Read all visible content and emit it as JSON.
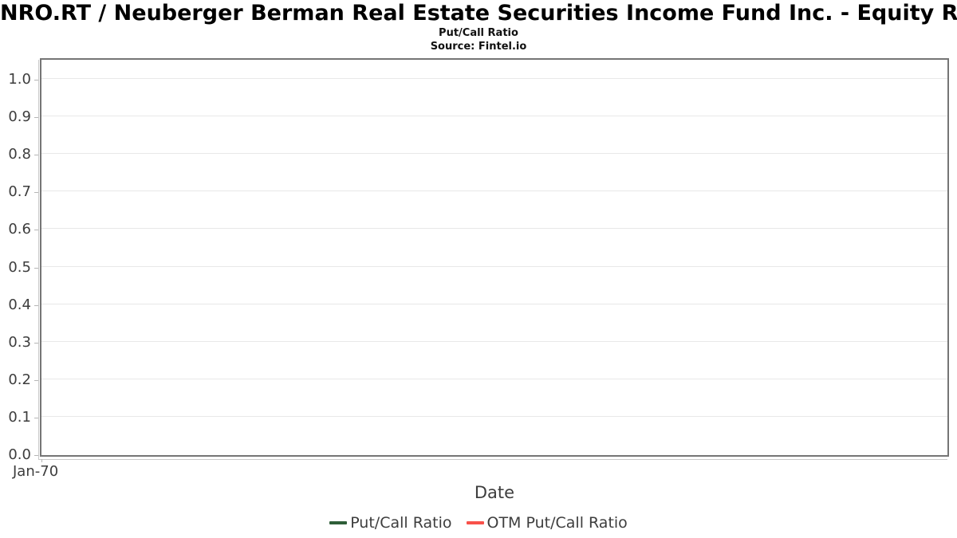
{
  "header": {
    "title": "NRO.RT / Neuberger Berman Real Estate Securities Income Fund Inc. - Equity Right",
    "subtitle": "Put/Call Ratio",
    "source": "Source: Fintel.io"
  },
  "colors": {
    "put_call_series": "#2e5e38",
    "otm_put_call_series": "#f8514a",
    "plot_border": "#757575",
    "gridline": "#e8e8e8",
    "axis_line": "#c9c9c9",
    "tick_text": "#3d3d3d"
  },
  "chart_data": {
    "type": "line",
    "title": "NRO.RT / Neuberger Berman Real Estate Securities Income Fund Inc. - Equity Right",
    "subtitle": "Put/Call Ratio",
    "source": "Source: Fintel.io",
    "xlabel": "Date",
    "ylabel": "",
    "ylim": [
      0.0,
      1.05
    ],
    "ytick_labels": [
      "0.0",
      "0.1",
      "0.2",
      "0.3",
      "0.4",
      "0.5",
      "0.6",
      "0.7",
      "0.8",
      "0.9",
      "1.0"
    ],
    "xtick_labels": [
      "Jan-70"
    ],
    "grid": true,
    "legend_position": "bottom",
    "series": [
      {
        "name": "Put/Call Ratio",
        "color": "#2e5e38",
        "x": [],
        "values": []
      },
      {
        "name": "OTM Put/Call Ratio",
        "color": "#f8514a",
        "x": [],
        "values": []
      }
    ],
    "note": "plot area is empty - no data points rendered"
  }
}
